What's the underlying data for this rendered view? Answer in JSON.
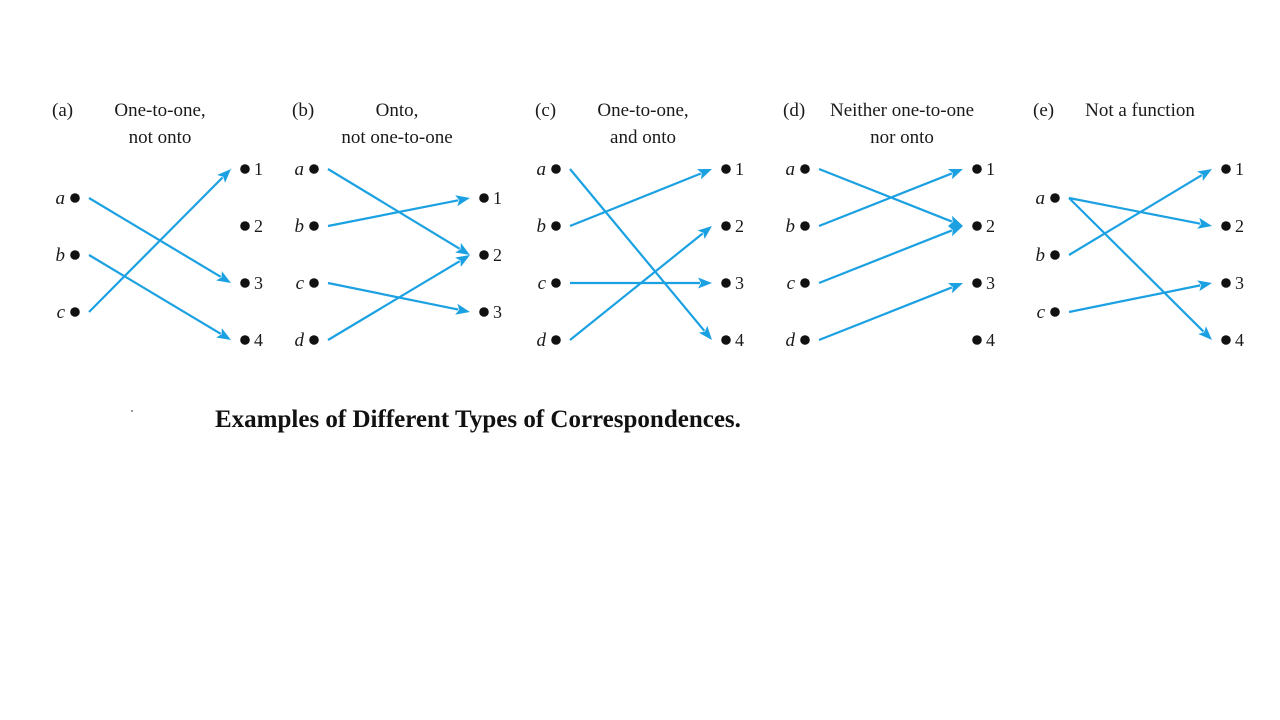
{
  "caption": "Examples of Different Types of Correspondences.",
  "arrow_color": "#1ba1e2",
  "panels": [
    {
      "tag": "(a)",
      "title_lines": [
        "One-to-one,",
        "not onto"
      ],
      "domain": [
        "a",
        "b",
        "c"
      ],
      "codomain": [
        "1",
        "2",
        "3",
        "4"
      ],
      "mappings": [
        [
          "a",
          "3"
        ],
        [
          "b",
          "4"
        ],
        [
          "c",
          "1"
        ]
      ]
    },
    {
      "tag": "(b)",
      "title_lines": [
        "Onto,",
        "not one-to-one"
      ],
      "domain": [
        "a",
        "b",
        "c",
        "d"
      ],
      "codomain": [
        "1",
        "2",
        "3"
      ],
      "mappings": [
        [
          "a",
          "2"
        ],
        [
          "b",
          "1"
        ],
        [
          "c",
          "3"
        ],
        [
          "d",
          "2"
        ]
      ]
    },
    {
      "tag": "(c)",
      "title_lines": [
        "One-to-one,",
        "and onto"
      ],
      "domain": [
        "a",
        "b",
        "c",
        "d"
      ],
      "codomain": [
        "1",
        "2",
        "3",
        "4"
      ],
      "mappings": [
        [
          "a",
          "4"
        ],
        [
          "b",
          "1"
        ],
        [
          "c",
          "3"
        ],
        [
          "d",
          "2"
        ]
      ]
    },
    {
      "tag": "(d)",
      "title_lines": [
        "Neither one-to-one",
        "nor onto"
      ],
      "domain": [
        "a",
        "b",
        "c",
        "d"
      ],
      "codomain": [
        "1",
        "2",
        "3",
        "4"
      ],
      "mappings": [
        [
          "a",
          "2"
        ],
        [
          "b",
          "1"
        ],
        [
          "c",
          "2"
        ],
        [
          "d",
          "3"
        ]
      ]
    },
    {
      "tag": "(e)",
      "title_lines": [
        "Not a function"
      ],
      "domain": [
        "a",
        "b",
        "c"
      ],
      "codomain": [
        "1",
        "2",
        "3",
        "4"
      ],
      "mappings": [
        [
          "a",
          "2"
        ],
        [
          "a",
          "4"
        ],
        [
          "b",
          "1"
        ],
        [
          "c",
          "3"
        ]
      ]
    }
  ]
}
